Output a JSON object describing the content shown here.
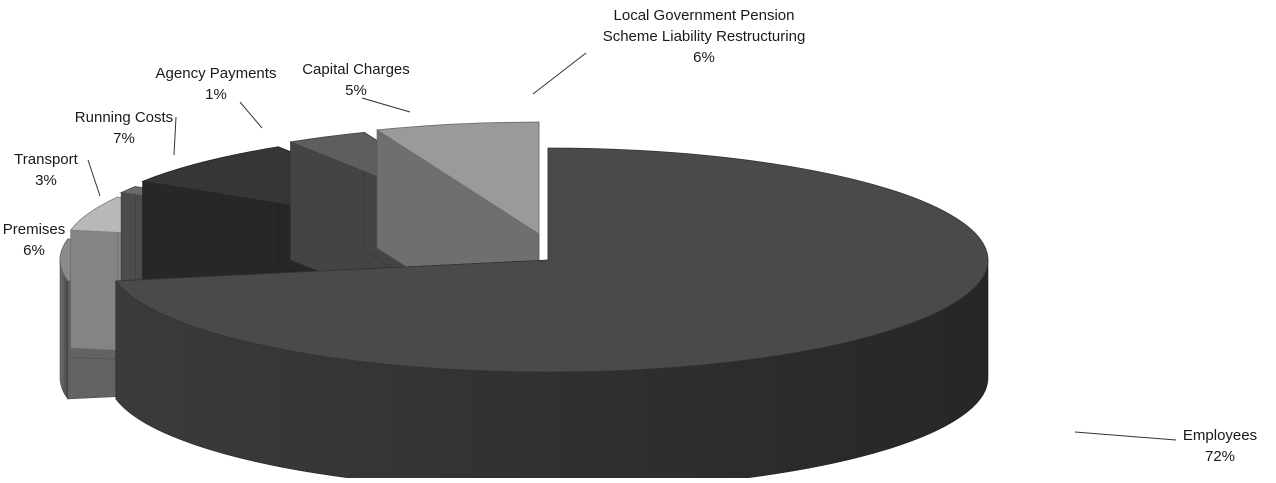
{
  "chart_data": {
    "type": "pie",
    "variant": "3d-exploded",
    "title": "",
    "legend": "none",
    "slices": [
      {
        "label": "Employees",
        "value": 72,
        "percent_label": "72%",
        "color": "#4a4a4a"
      },
      {
        "label": "Local Government Pension Scheme Liability Restructuring",
        "label_lines": [
          "Local Government Pension",
          "Scheme Liability Restructuring"
        ],
        "value": 6,
        "percent_label": "6%",
        "color": "#8a8a8a"
      },
      {
        "label": "Capital Charges",
        "value": 5,
        "percent_label": "5%",
        "color": "#b8b8b8"
      },
      {
        "label": "Agency Payments",
        "value": 1,
        "percent_label": "1%",
        "color": "#6a6a6a"
      },
      {
        "label": "Running Costs",
        "value": 7,
        "percent_label": "7%",
        "color": "#363636"
      },
      {
        "label": "Transport",
        "value": 3,
        "percent_label": "3%",
        "color": "#5e5e5e"
      },
      {
        "label": "Premises",
        "value": 6,
        "percent_label": "6%",
        "color": "#9a9a9a"
      }
    ]
  }
}
